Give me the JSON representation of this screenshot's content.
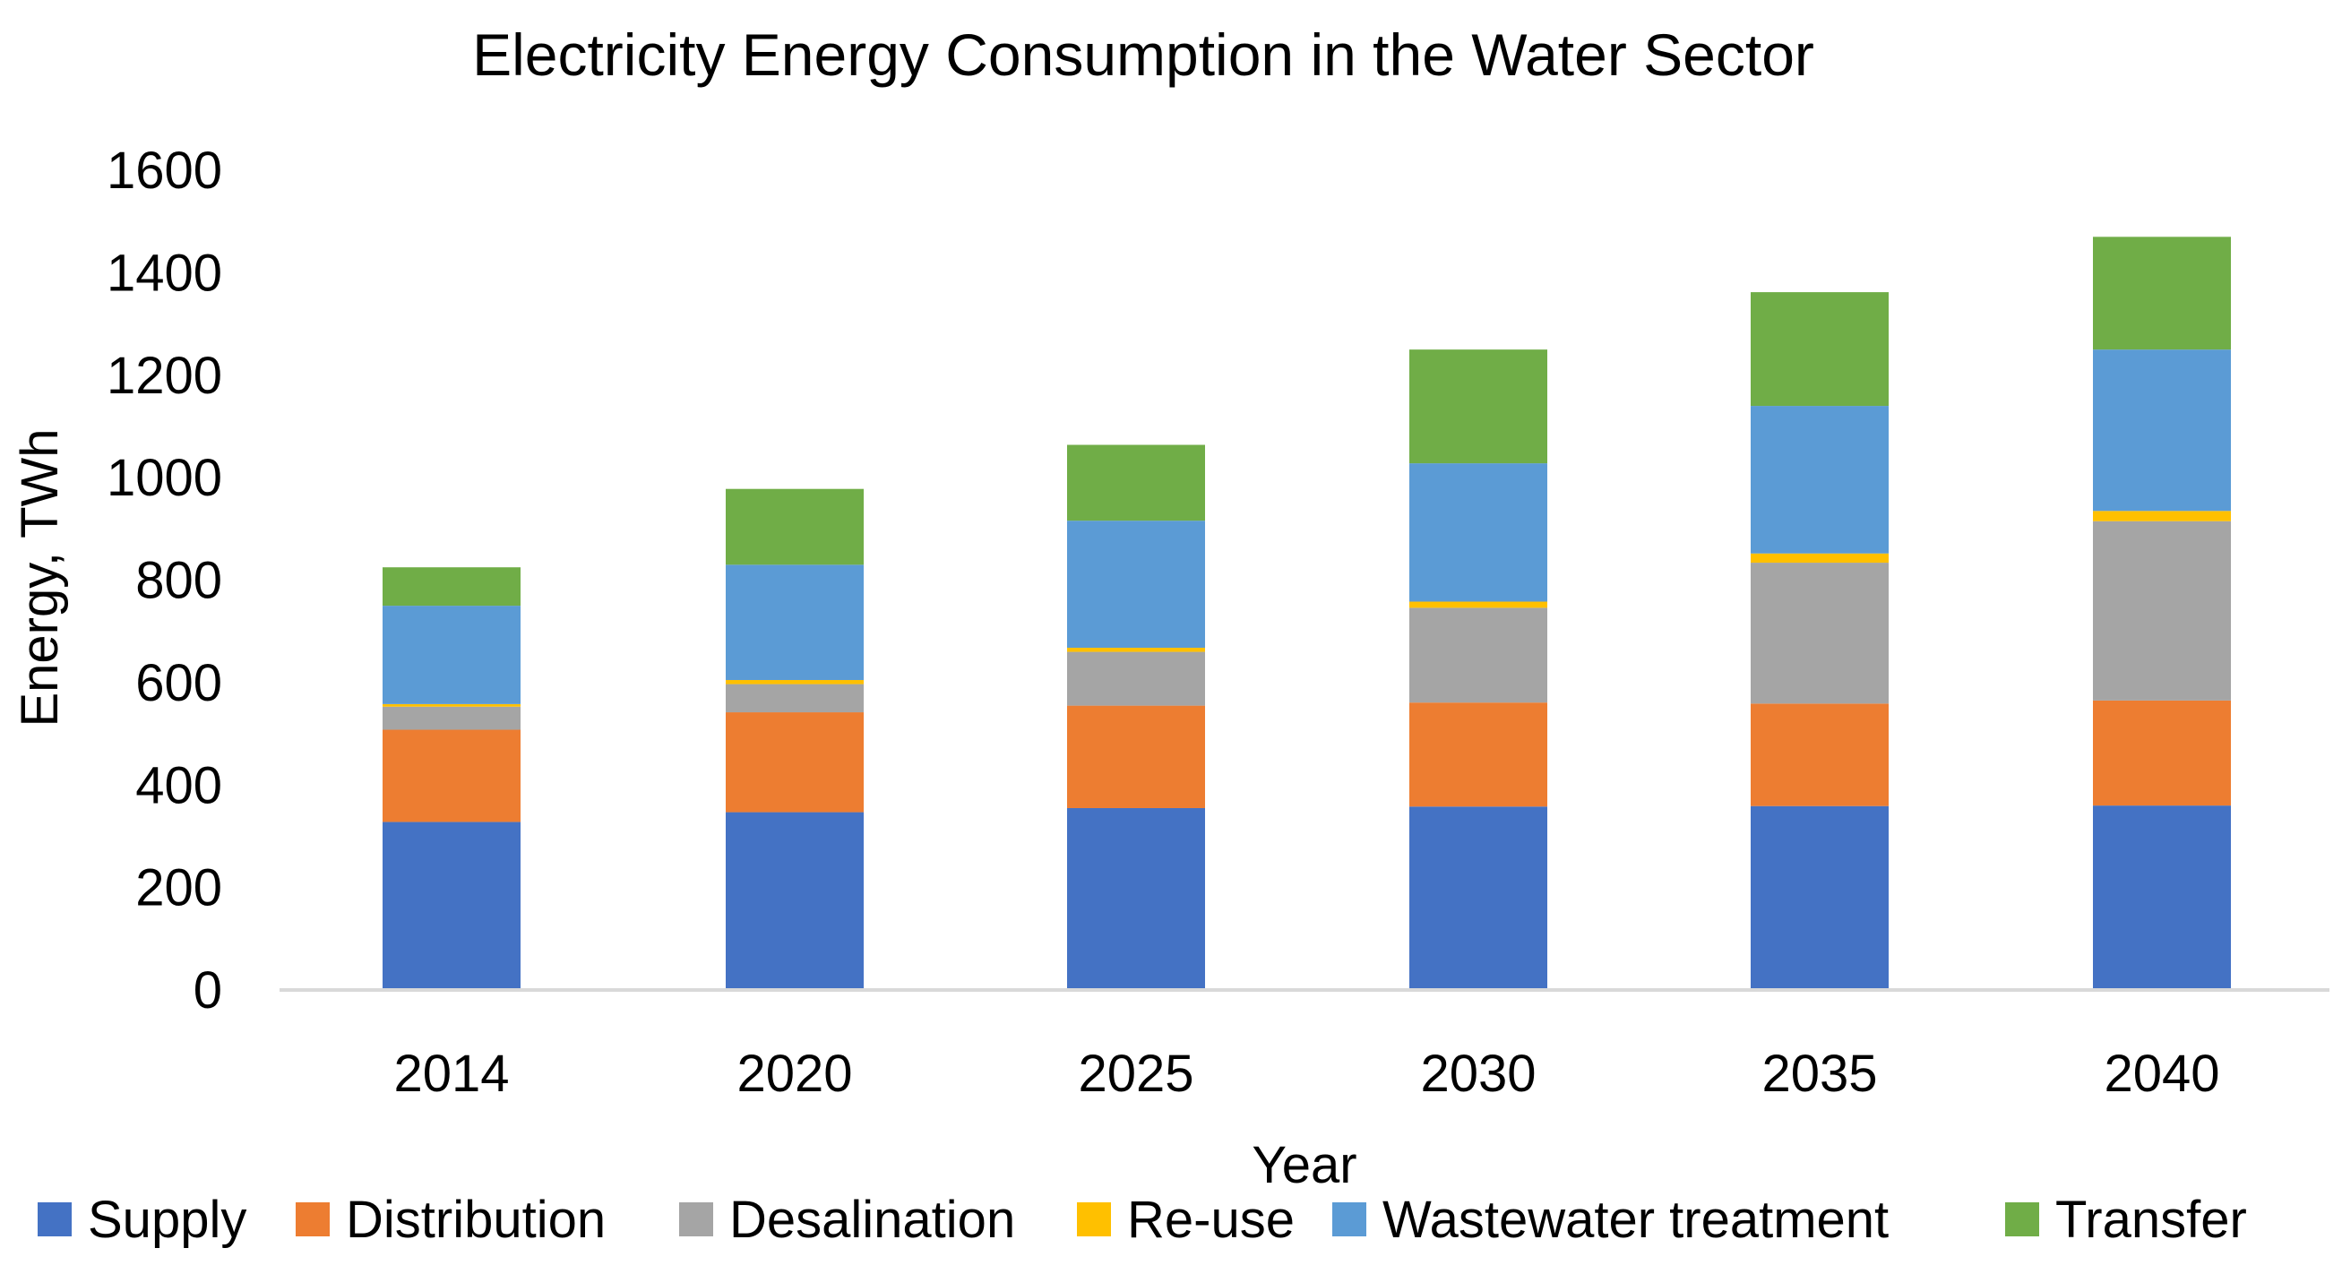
{
  "chart_data": {
    "type": "bar",
    "stacked": true,
    "title": "Electricity Energy Consumption in the Water Sector",
    "xlabel": "Year",
    "ylabel": "Energy, TWh",
    "categories": [
      "2014",
      "2020",
      "2025",
      "2030",
      "2035",
      "2040"
    ],
    "ylim": [
      0,
      1600
    ],
    "yticks": [
      0,
      200,
      400,
      600,
      800,
      1000,
      1200,
      1400,
      1600
    ],
    "ytick_labels": [
      "0",
      "200",
      "400",
      "600",
      "800",
      "1000",
      "1200",
      "1400",
      "1600"
    ],
    "grid": false,
    "legend_position": "bottom",
    "series": [
      {
        "name": "Supply",
        "color": "#4472C4",
        "values": [
          328,
          347,
          355,
          358,
          359,
          360
        ]
      },
      {
        "name": "Distribution",
        "color": "#ED7D31",
        "values": [
          180,
          195,
          200,
          203,
          200,
          205
        ]
      },
      {
        "name": "Desalination",
        "color": "#A5A5A5",
        "values": [
          45,
          55,
          105,
          185,
          275,
          350
        ]
      },
      {
        "name": "Re-use",
        "color": "#FFC000",
        "values": [
          5,
          8,
          8,
          12,
          18,
          20
        ]
      },
      {
        "name": "Wastewater treatment",
        "color": "#5B9BD5",
        "values": [
          192,
          225,
          248,
          270,
          288,
          315
        ]
      },
      {
        "name": "Transfer",
        "color": "#70AD47",
        "values": [
          75,
          148,
          148,
          222,
          222,
          220
        ]
      }
    ]
  }
}
